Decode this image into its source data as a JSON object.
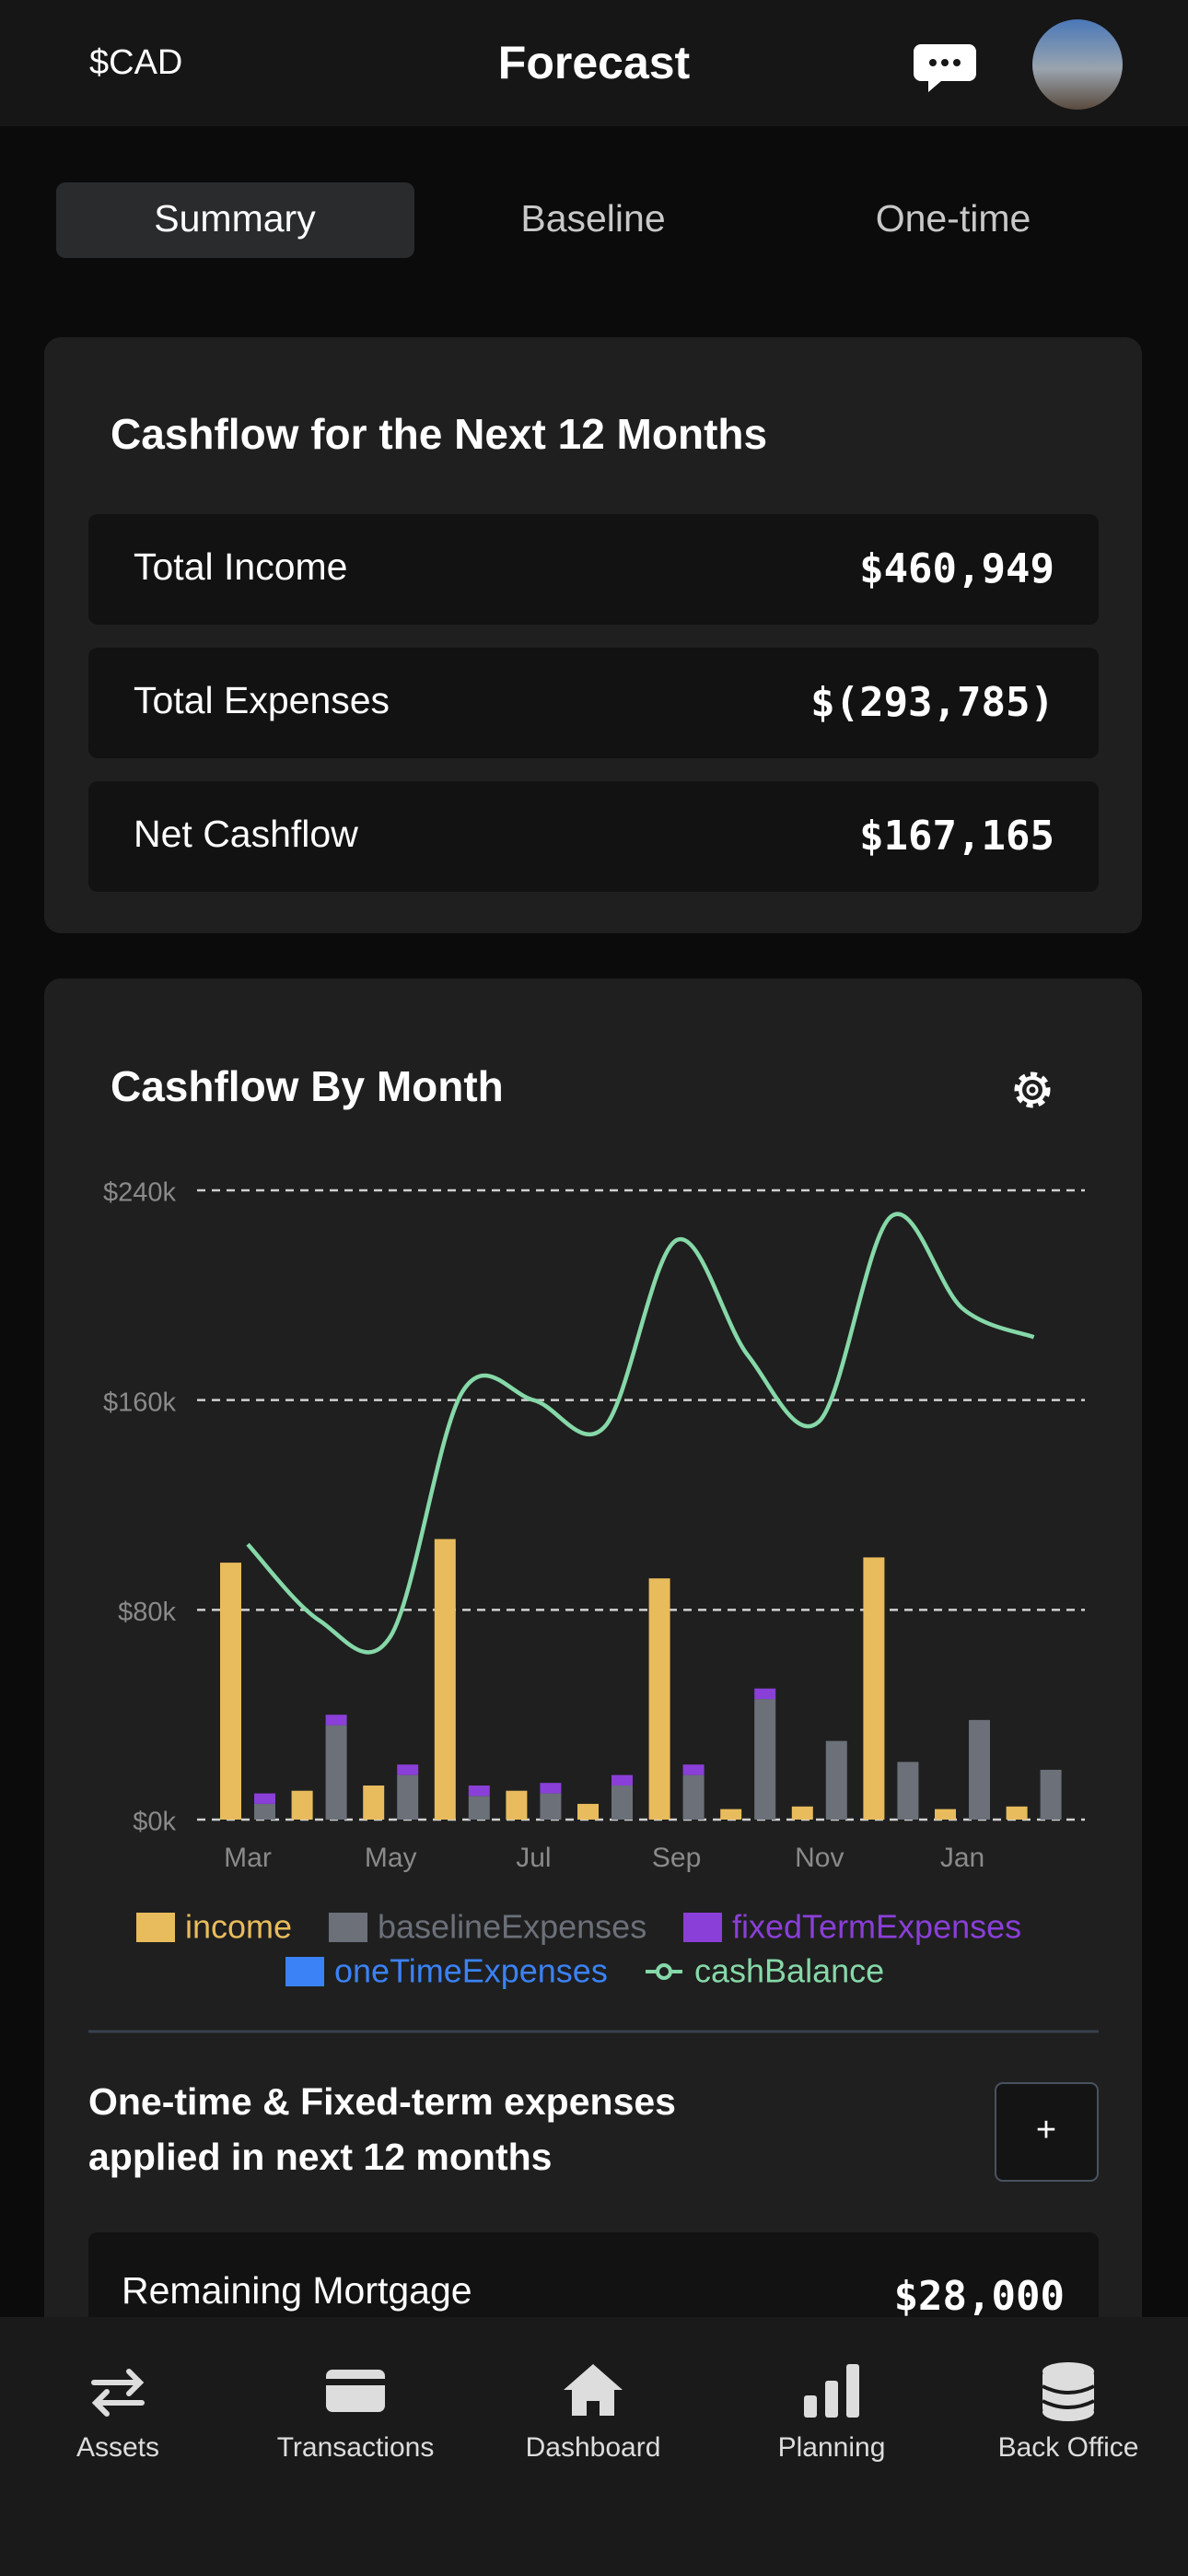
{
  "header": {
    "currency": "$CAD",
    "title": "Forecast"
  },
  "tabs": [
    "Summary",
    "Baseline",
    "One-time"
  ],
  "summary": {
    "title": "Cashflow for the Next 12 Months",
    "rows": [
      {
        "label": "Total Income",
        "value": "$460,949"
      },
      {
        "label": "Total Expenses",
        "value": "$(293,785)"
      },
      {
        "label": "Net Cashflow",
        "value": "$167,165"
      }
    ]
  },
  "chart_data": {
    "type": "bar",
    "title": "Cashflow By Month",
    "categories": [
      "Mar",
      null,
      "May",
      null,
      "Jul",
      null,
      "Sep",
      null,
      "Nov",
      null,
      "Jan",
      null
    ],
    "series": [
      {
        "name": "income",
        "color": "#e8bc5c",
        "stack": "income",
        "values": [
          98,
          11,
          13,
          107,
          11,
          6,
          92,
          4,
          5,
          100,
          4,
          5
        ]
      },
      {
        "name": "baselineExpenses",
        "color": "#6b7079",
        "stack": "expenses",
        "values": [
          6,
          36,
          17,
          9,
          10,
          13,
          17,
          46,
          30,
          22,
          38,
          19
        ]
      },
      {
        "name": "fixedTermExpenses",
        "color": "#8a3fd8",
        "stack": "expenses",
        "values": [
          4,
          4,
          4,
          4,
          4,
          4,
          4,
          4,
          0,
          0,
          0,
          0
        ]
      },
      {
        "name": "oneTimeExpenses",
        "color": "#3b82f6",
        "stack": "expenses",
        "values": [
          0,
          0,
          0,
          0,
          0,
          0,
          0,
          0,
          0,
          0,
          0,
          0
        ]
      },
      {
        "name": "cashBalance",
        "color": "#86d8a8",
        "type": "line",
        "values": [
          105,
          76,
          70,
          163,
          160,
          150,
          221,
          177,
          152,
          230,
          195,
          184
        ]
      }
    ],
    "ylim": [
      0,
      240
    ],
    "yticks": [
      {
        "value": 0,
        "label": "$0k"
      },
      {
        "value": 80,
        "label": "$80k"
      },
      {
        "value": 160,
        "label": "$160k"
      },
      {
        "value": 240,
        "label": "$240k"
      }
    ],
    "grid": true,
    "legend": "bottom"
  },
  "expenses": {
    "title_lines": [
      "One-time & Fixed-term expenses",
      "applied in next 12 months"
    ],
    "button": "+",
    "items": [
      {
        "label": "Remaining Mortgage",
        "value": "$28,000"
      }
    ]
  },
  "nav": [
    "Assets",
    "Transactions",
    "Dashboard",
    "Planning",
    "Back Office"
  ]
}
